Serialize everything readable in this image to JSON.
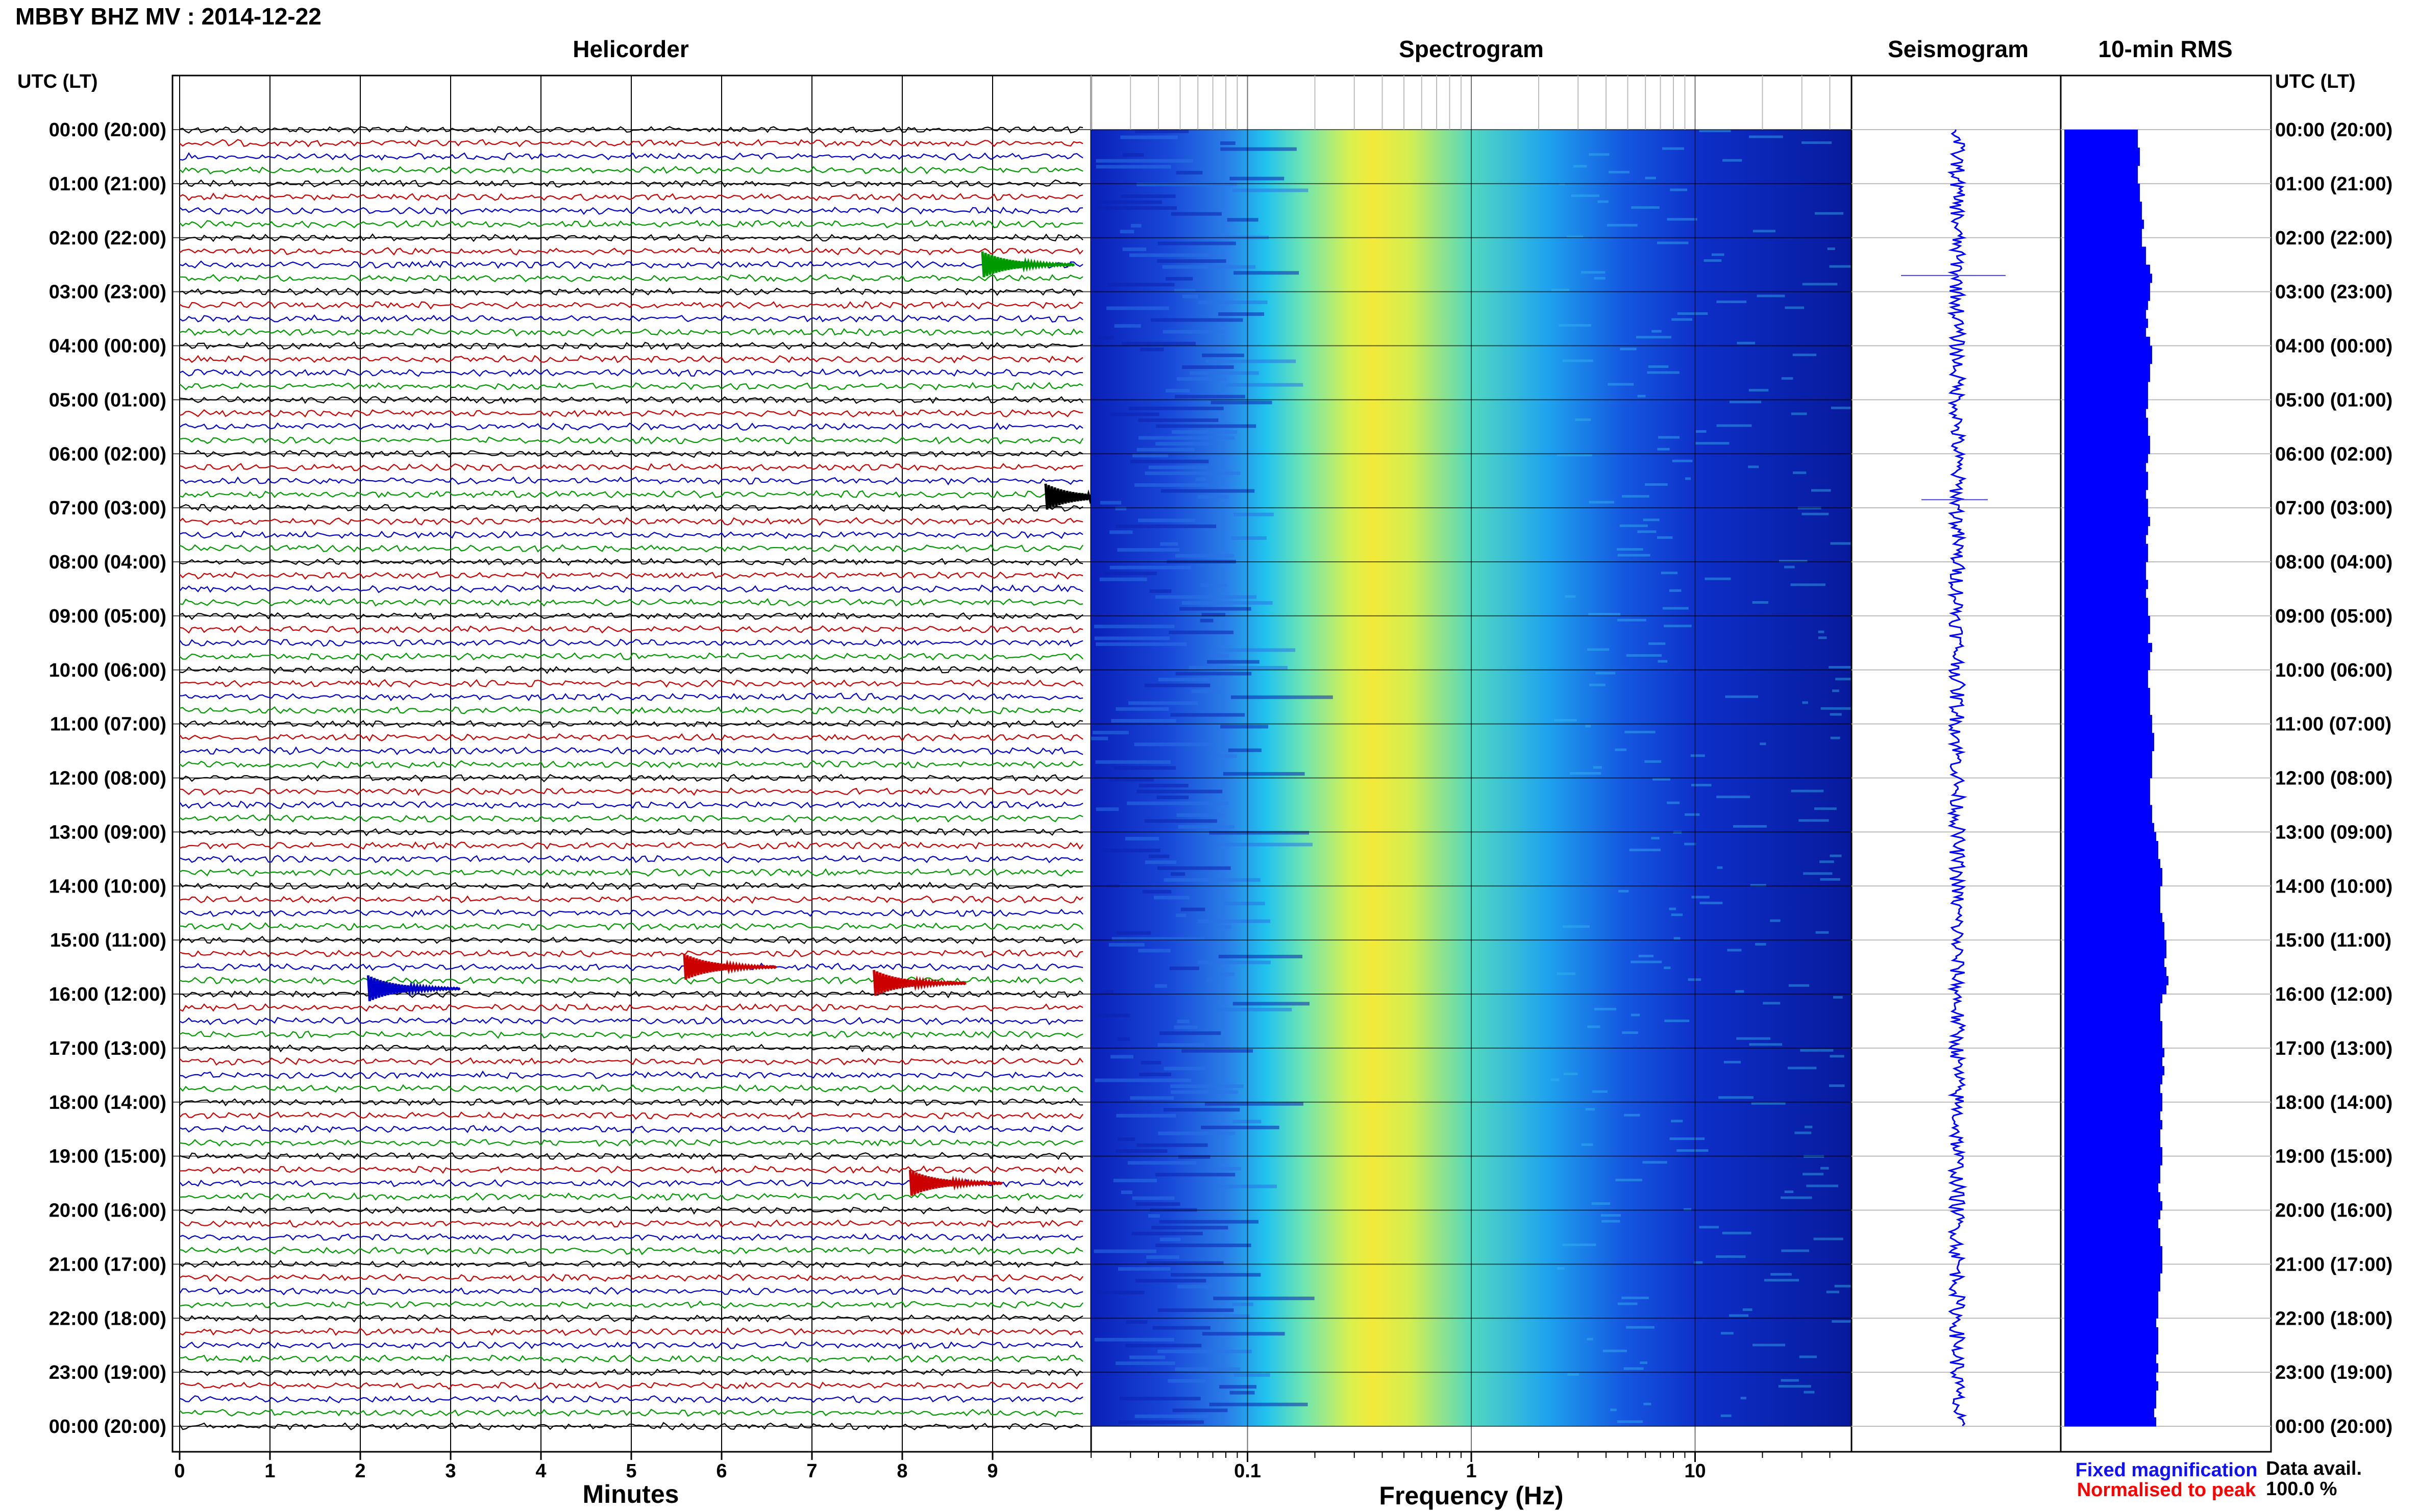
{
  "header": {
    "title": "MBBY BHZ MV : 2014-12-22",
    "time_axis_label": "UTC (LT)"
  },
  "panels": {
    "helicorder": "Helicorder",
    "spectrogram": "Spectrogram",
    "seismogram": "Seismogram",
    "rms": "10-min RMS"
  },
  "axes": {
    "minutes_title": "Minutes",
    "frequency_title": "Frequency (Hz)"
  },
  "legend": {
    "fixed": "Fixed magnification",
    "normalised": "Normalised to peak",
    "fixed_color": "#1010ff",
    "normalised_color": "#ff0000"
  },
  "data_avail": {
    "label": "Data avail.",
    "value": "100.0 %"
  },
  "chart_data": {
    "type": "heatmap",
    "title": "MBBY BHZ MV : 2014-12-22",
    "hour_labels": [
      "00:00 (20:00)",
      "01:00 (21:00)",
      "02:00 (22:00)",
      "03:00 (23:00)",
      "04:00 (00:00)",
      "05:00 (01:00)",
      "06:00 (02:00)",
      "07:00 (03:00)",
      "08:00 (04:00)",
      "09:00 (05:00)",
      "10:00 (06:00)",
      "11:00 (07:00)",
      "12:00 (08:00)",
      "13:00 (09:00)",
      "14:00 (10:00)",
      "15:00 (11:00)",
      "16:00 (12:00)",
      "17:00 (13:00)",
      "18:00 (14:00)",
      "19:00 (15:00)",
      "20:00 (16:00)",
      "21:00 (17:00)",
      "22:00 (18:00)",
      "23:00 (19:00)",
      "00:00 (20:00)"
    ],
    "helicorder": {
      "xlabel": "Minutes",
      "minute_ticks": [
        0,
        1,
        2,
        3,
        4,
        5,
        6,
        7,
        8,
        9
      ],
      "xlim": [
        0,
        10
      ],
      "trace_colors": [
        "#000000",
        "#cc0000",
        "#0000cc",
        "#009900"
      ],
      "events": [
        {
          "hour": 2.5,
          "minute": 9.0,
          "color": "#009900"
        },
        {
          "hour": 6.8,
          "minute": 9.7,
          "color": "#000000"
        },
        {
          "hour": 15.5,
          "minute": 5.7,
          "color": "#cc0000"
        },
        {
          "hour": 15.9,
          "minute": 2.2,
          "color": "#0000cc"
        },
        {
          "hour": 15.8,
          "minute": 7.8,
          "color": "#cc0000"
        },
        {
          "hour": 19.5,
          "minute": 8.2,
          "color": "#cc0000"
        }
      ]
    },
    "spectrogram": {
      "xlabel": "Frequency (Hz)",
      "x_scale": "log",
      "xlim": [
        0.02,
        50
      ],
      "tick_labels": [
        {
          "value": 0.1,
          "label": "0.1"
        },
        {
          "value": 1,
          "label": "1"
        },
        {
          "value": 10,
          "label": "10"
        }
      ],
      "peak_frequency_hz": 0.4,
      "colormap": "jet"
    },
    "rms_10min": {
      "values": [
        0.36,
        0.36,
        0.37,
        0.37,
        0.36,
        0.36,
        0.37,
        0.37,
        0.38,
        0.38,
        0.39,
        0.38,
        0.38,
        0.4,
        0.4,
        0.42,
        0.43,
        0.42,
        0.42,
        0.41,
        0.4,
        0.41,
        0.4,
        0.42,
        0.43,
        0.43,
        0.42,
        0.42,
        0.41,
        0.41,
        0.41,
        0.4,
        0.41,
        0.41,
        0.42,
        0.42,
        0.41,
        0.4,
        0.41,
        0.41,
        0.4,
        0.41,
        0.41,
        0.42,
        0.41,
        0.4,
        0.41,
        0.41,
        0.4,
        0.4,
        0.41,
        0.4,
        0.41,
        0.41,
        0.42,
        0.42,
        0.41,
        0.43,
        0.42,
        0.42,
        0.41,
        0.41,
        0.42,
        0.42,
        0.42,
        0.43,
        0.43,
        0.44,
        0.44,
        0.43,
        0.43,
        0.43,
        0.42,
        0.42,
        0.42,
        0.43,
        0.43,
        0.44,
        0.45,
        0.46,
        0.46,
        0.47,
        0.48,
        0.48,
        0.47,
        0.47,
        0.47,
        0.48,
        0.49,
        0.49,
        0.5,
        0.5,
        0.49,
        0.5,
        0.51,
        0.5,
        0.48,
        0.47,
        0.47,
        0.48,
        0.48,
        0.48,
        0.49,
        0.48,
        0.49,
        0.48,
        0.47,
        0.48,
        0.48,
        0.47,
        0.48,
        0.47,
        0.47,
        0.48,
        0.48,
        0.47,
        0.47,
        0.46,
        0.47,
        0.48,
        0.47,
        0.46,
        0.47,
        0.47,
        0.48,
        0.48,
        0.48,
        0.47,
        0.47,
        0.46,
        0.46,
        0.46,
        0.45,
        0.46,
        0.46,
        0.46,
        0.45,
        0.46,
        0.45,
        0.46,
        0.45,
        0.45,
        0.44,
        0.45
      ],
      "xlim": [
        0,
        1
      ],
      "bar_color": "#0000ff"
    }
  }
}
